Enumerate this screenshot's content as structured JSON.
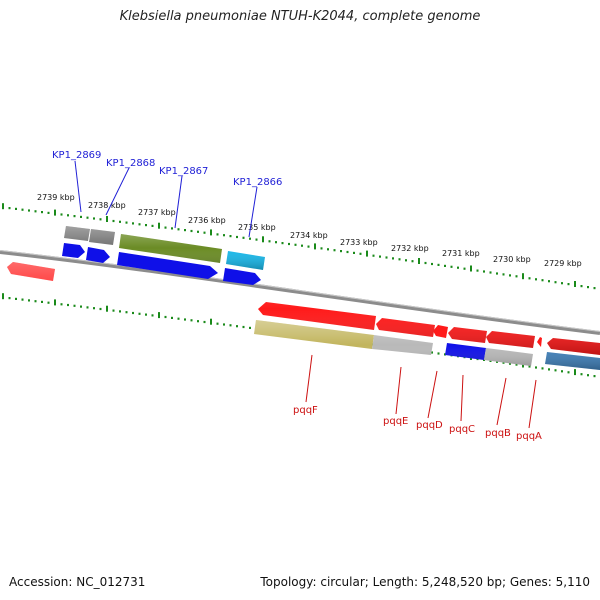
{
  "title": "Klebsiella pneumoniae NTUH-K2044, complete genome",
  "footer": {
    "accession": "Accession: NC_012731",
    "summary": "Topology: circular; Length: 5,248,520 bp; Genes: 5,110"
  },
  "colors": {
    "tick": "#1a8a1a",
    "backbone": "#8c8c8c",
    "label_blue": "#1f1fd6",
    "label_red": "#cc1111",
    "gene_red": "#ff1a1a",
    "gene_blue": "#0f10e8",
    "gene_olive": "#6b8c25",
    "gene_cyan": "#19b8ea",
    "gene_gray": "#6f6f6f",
    "gene_khaki": "#c2b55e",
    "gene_lightgray": "#b9b9b9",
    "gene_steel": "#3f7fb8"
  },
  "scale_labels": [
    "2739 kbp",
    "2738 kbp",
    "2737 kbp",
    "2736 kbp",
    "2735 kbp",
    "2734 kbp",
    "2733 kbp",
    "2732 kbp",
    "2731 kbp",
    "2730 kbp",
    "2729 kbp"
  ],
  "gene_labels": {
    "top": [
      "KP1_2869",
      "KP1_2868",
      "KP1_2867",
      "KP1_2866"
    ],
    "bottom": [
      "pqqF",
      "pqqE",
      "pqqD",
      "pqqC",
      "pqqB",
      "pqqA"
    ]
  }
}
